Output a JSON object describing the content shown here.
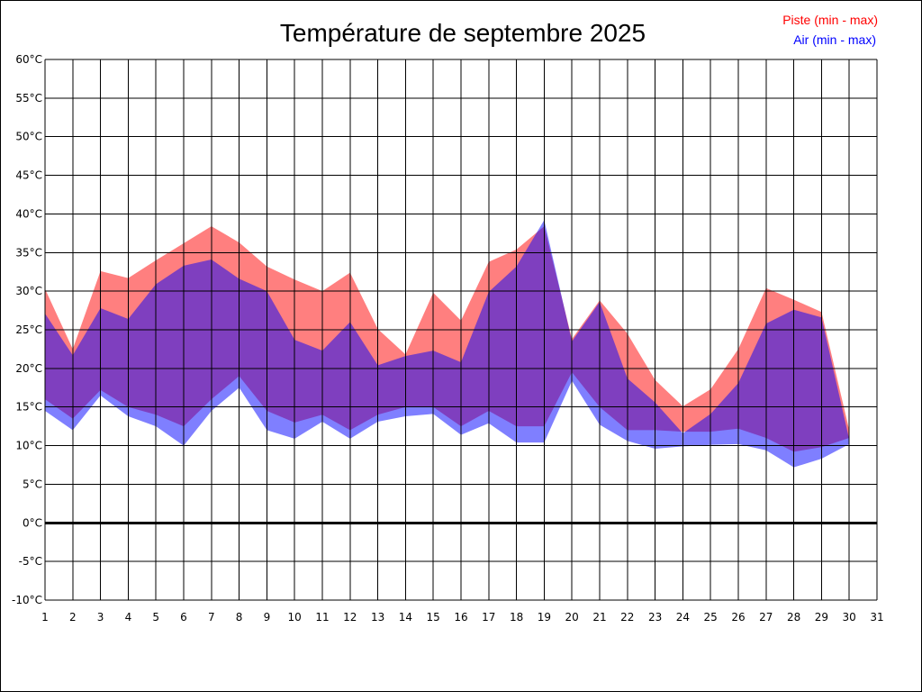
{
  "chart_data": {
    "type": "area",
    "title": "Température de septembre 2025",
    "xlabel": "",
    "ylabel": "",
    "xlim": [
      1,
      31
    ],
    "ylim": [
      -10,
      60
    ],
    "x_ticks": [
      "1",
      "2",
      "3",
      "4",
      "5",
      "6",
      "7",
      "8",
      "9",
      "10",
      "11",
      "12",
      "13",
      "14",
      "15",
      "16",
      "17",
      "18",
      "19",
      "20",
      "21",
      "22",
      "23",
      "24",
      "25",
      "26",
      "27",
      "28",
      "29",
      "30",
      "31"
    ],
    "y_ticks": [
      "60°C",
      "55°C",
      "50°C",
      "45°C",
      "40°C",
      "35°C",
      "30°C",
      "25°C",
      "20°C",
      "15°C",
      "10°C",
      "5°C",
      "0°C",
      "-5°C",
      "-10°C"
    ],
    "y_tick_values": [
      60,
      55,
      50,
      45,
      40,
      35,
      30,
      25,
      20,
      15,
      10,
      5,
      0,
      -5,
      -10
    ],
    "grid": true,
    "legend_position": "top-right",
    "legend": [
      {
        "label": "Piste (min - max)",
        "color": "#ff0000"
      },
      {
        "label": "Air (min - max)",
        "color": "#0000ff"
      }
    ],
    "x": [
      1,
      2,
      3,
      4,
      5,
      6,
      7,
      8,
      9,
      10,
      11,
      12,
      13,
      14,
      15,
      16,
      17,
      18,
      19,
      20,
      21,
      22,
      23,
      24,
      25,
      26,
      27,
      28,
      29,
      30
    ],
    "series": [
      {
        "name": "Piste (min - max)",
        "color": "#ff0000",
        "fill": "#ff7f7f",
        "min": [
          16,
          13.5,
          17.2,
          15,
          14,
          12.5,
          16,
          19,
          14.5,
          13,
          14,
          12,
          14,
          15,
          15,
          12.5,
          14.5,
          12.5,
          12.5,
          19.5,
          15,
          12,
          12,
          11.8,
          11.8,
          12.2,
          11,
          9.2,
          9.8,
          11
        ],
        "max": [
          30.3,
          22.5,
          32.6,
          31.7,
          34,
          36.2,
          38.4,
          36.3,
          33.2,
          31.5,
          30,
          32.4,
          25.1,
          21.8,
          29.8,
          26.2,
          33.8,
          35.4,
          38.4,
          23.8,
          28.8,
          24.5,
          18.5,
          15.1,
          17.3,
          22.5,
          30.4,
          28.9,
          27.3,
          12
        ]
      },
      {
        "name": "Air (min - max)",
        "color": "#0000ff",
        "fill": "#7f7fff",
        "min": [
          14.5,
          12,
          16.5,
          13.8,
          12.5,
          10,
          14.5,
          17.5,
          12,
          10.9,
          13.1,
          10.9,
          13.1,
          13.8,
          14.1,
          11.4,
          12.9,
          10.4,
          10.4,
          18.4,
          12.7,
          10.6,
          9.6,
          9.9,
          10.1,
          10.2,
          9.4,
          7.2,
          8.3,
          10.2
        ],
        "max": [
          27.1,
          21.7,
          27.8,
          26.4,
          30.9,
          33.3,
          34.1,
          31.6,
          30,
          23.7,
          22.3,
          26,
          20.4,
          21.6,
          22.3,
          20.8,
          29.9,
          33.2,
          39.2,
          23.5,
          28.6,
          18.7,
          15.6,
          11.6,
          14.1,
          18.1,
          25.8,
          27.6,
          26.6,
          10.8
        ]
      }
    ]
  }
}
